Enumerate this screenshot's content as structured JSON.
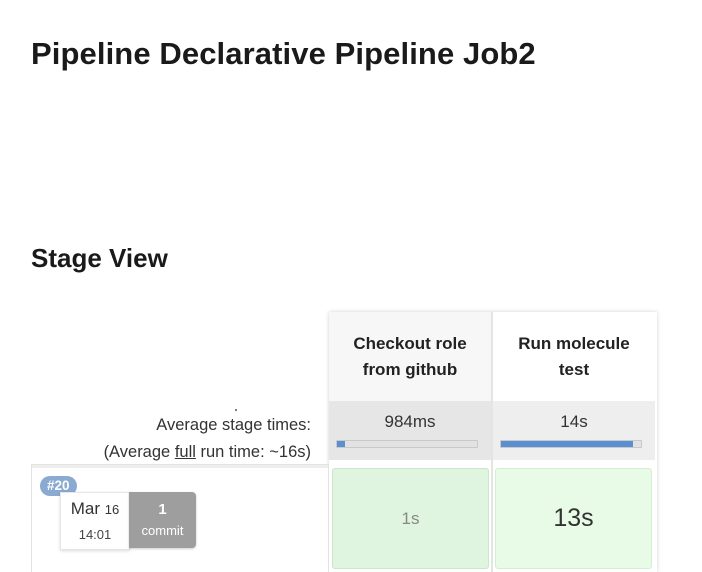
{
  "page": {
    "title": "Pipeline Declarative Pipeline Job2"
  },
  "stage_view": {
    "title": "Stage View",
    "average_label": "Average stage times:",
    "full_run_prefix": "(Average ",
    "full_run_link": "full",
    "full_run_suffix": " run time: ~16s)",
    "stages": [
      {
        "name": "Checkout role from github",
        "avg_time": "984ms",
        "avg_fraction": 0.06,
        "run_time": "1s",
        "status": "success"
      },
      {
        "name": "Run molecule test",
        "avg_time": "14s",
        "avg_fraction": 0.94,
        "run_time": "13s",
        "status": "success"
      }
    ],
    "build": {
      "number": "#20",
      "month": "Mar",
      "day": "16",
      "time": "14:01",
      "commit_count": "1",
      "commit_label": "commit"
    }
  },
  "colors": {
    "badge": "#8aaad2",
    "progress_fill": "#5b8fd1",
    "success_cell": "#dff5df",
    "commit_box": "#9e9e9e"
  }
}
